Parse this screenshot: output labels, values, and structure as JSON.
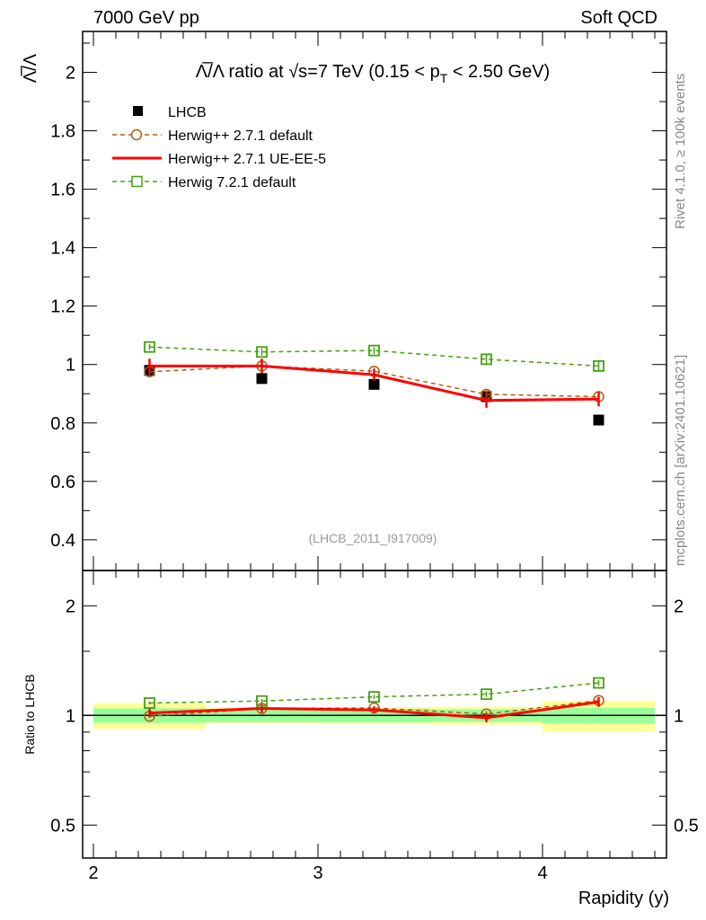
{
  "header": {
    "left": "7000 GeV pp",
    "right": "Soft QCD"
  },
  "side": {
    "top": "Rivet 4.1.0, ≥ 100k events",
    "bottom": "mcplots.cern.ch [arXiv:2401.10621]"
  },
  "chart_data": [
    {
      "type": "line",
      "title": "Λ̅/Λ ratio at √s=7 TeV (0.15 < p_T < 2.50 GeV)",
      "title_main": "Λ̅/Λ ratio at √s=7 TeV (0.15 < p",
      "title_sub": "T",
      "title_end": " < 2.50 GeV)",
      "ylabel": "Λ̅/Λ",
      "xlabel": "Rapidity (y)",
      "watermark": "(LHCB_2011_I917009)",
      "xlim": [
        1.952,
        4.552
      ],
      "ylim": [
        0.295,
        2.14
      ],
      "yticks": [
        0.4,
        0.6,
        0.8,
        1,
        1.2,
        1.4,
        1.6,
        1.8,
        2
      ],
      "ytick_labels": [
        "0.4",
        "0.6",
        "0.8",
        "1",
        "1.2",
        "1.4",
        "1.6",
        "1.8",
        "2"
      ],
      "legend_position": "top-left",
      "bins": [
        [
          2.0,
          2.5
        ],
        [
          2.5,
          3.0
        ],
        [
          3.0,
          3.5
        ],
        [
          3.5,
          4.0
        ],
        [
          4.0,
          4.5
        ]
      ],
      "x": [
        2.25,
        2.75,
        3.25,
        3.75,
        4.25
      ],
      "data": {
        "name": "LHCB",
        "values": [
          0.98,
          0.952,
          0.932,
          0.89,
          0.81
        ],
        "stat_err": [
          0.045,
          0.04,
          0.04,
          0.035,
          0.04
        ],
        "total_err": [
          0.08,
          0.05,
          0.05,
          0.05,
          0.08
        ],
        "color": "#000000"
      },
      "series": [
        {
          "name": "Herwig++ 2.7.1 default",
          "values": [
            0.975,
            0.995,
            0.977,
            0.898,
            0.89
          ],
          "err": [
            0.012,
            0.012,
            0.012,
            0.015,
            0.012
          ],
          "color": "#b45a10",
          "marker": "circle",
          "dash": true
        },
        {
          "name": "Herwig++ 2.7.1 UE-EE-5",
          "values": [
            0.995,
            0.995,
            0.965,
            0.877,
            0.882
          ],
          "err": [
            0.025,
            0.025,
            0.02,
            0.025,
            0.025
          ],
          "color": "#ff0000",
          "marker": "none",
          "dash": false
        },
        {
          "name": "Herwig 7.2.1 default",
          "values": [
            1.06,
            1.043,
            1.048,
            1.018,
            0.995
          ],
          "err": [
            0.01,
            0.012,
            0.012,
            0.015,
            0.015
          ],
          "color": "#44a010",
          "marker": "square",
          "dash": true
        }
      ]
    },
    {
      "type": "line",
      "ylabel": "Ratio to LHCB",
      "ylim": [
        0.406,
        2.5
      ],
      "yscale": "log",
      "yticks": [
        0.5,
        1,
        2
      ],
      "ytick_labels": [
        "0.5",
        "1",
        "2"
      ],
      "xticks": [
        2,
        3,
        4
      ],
      "xtick_labels": [
        "2",
        "3",
        "4"
      ],
      "band_colors": {
        "total": "#ffff99",
        "stat": "#99ff99"
      }
    }
  ]
}
